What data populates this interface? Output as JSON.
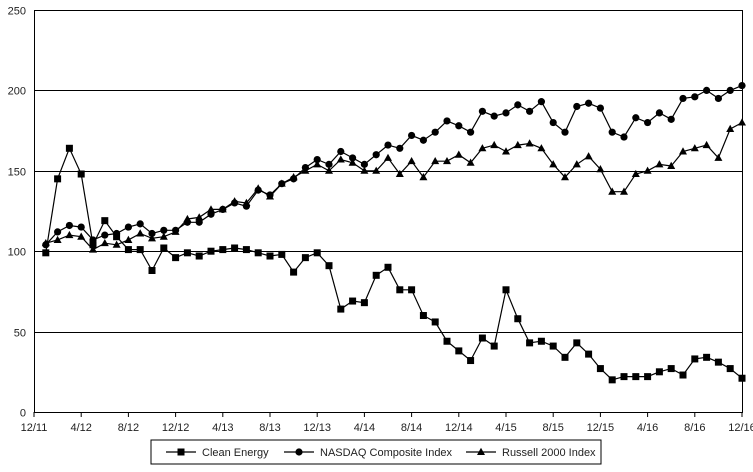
{
  "chart_data": {
    "type": "line",
    "title": "",
    "xlabel": "",
    "ylabel": "",
    "ylim": [
      0,
      250
    ],
    "yticks": [
      0,
      50,
      100,
      150,
      200,
      250
    ],
    "xlim": [
      0,
      60
    ],
    "xticks": [
      {
        "label": "12/11",
        "x": 0
      },
      {
        "label": "4/12",
        "x": 4
      },
      {
        "label": "8/12",
        "x": 8
      },
      {
        "label": "12/12",
        "x": 12
      },
      {
        "label": "4/13",
        "x": 16
      },
      {
        "label": "8/13",
        "x": 20
      },
      {
        "label": "12/13",
        "x": 24
      },
      {
        "label": "4/14",
        "x": 28
      },
      {
        "label": "8/14",
        "x": 32
      },
      {
        "label": "12/14",
        "x": 36
      },
      {
        "label": "4/15",
        "x": 40
      },
      {
        "label": "8/15",
        "x": 44
      },
      {
        "label": "12/15",
        "x": 48
      },
      {
        "label": "4/16",
        "x": 52
      },
      {
        "label": "8/16",
        "x": 56
      },
      {
        "label": "12/16",
        "x": 60
      }
    ],
    "grid": "horizontal",
    "legend": "bottom-center",
    "series": [
      {
        "name": "Clean Energy",
        "marker": "square",
        "values": [
          99,
          145,
          164,
          148,
          104,
          119,
          109,
          101,
          101,
          88,
          102,
          96,
          99,
          97,
          100,
          101,
          102,
          101,
          99,
          97,
          98,
          87,
          96,
          99,
          91,
          64,
          69,
          68,
          85,
          90,
          76,
          76,
          60,
          56,
          44,
          38,
          32,
          46,
          41,
          76,
          58,
          43,
          44,
          41,
          34,
          43,
          36,
          27,
          20,
          22,
          22,
          22,
          25,
          27,
          23,
          33,
          34,
          31,
          27,
          21
        ]
      },
      {
        "name": "NASDAQ Composite Index",
        "marker": "circle",
        "values": [
          104,
          112,
          116,
          115,
          107,
          110,
          111,
          115,
          117,
          111,
          113,
          113,
          118,
          118,
          123,
          126,
          130,
          128,
          138,
          135,
          142,
          145,
          152,
          157,
          154,
          162,
          158,
          154,
          160,
          166,
          164,
          172,
          169,
          174,
          181,
          178,
          174,
          187,
          184,
          186,
          191,
          187,
          193,
          180,
          174,
          190,
          192,
          189,
          174,
          171,
          183,
          180,
          186,
          182,
          195,
          196,
          200,
          195,
          200,
          203
        ]
      },
      {
        "name": "Russell 2000 Index",
        "marker": "triangle",
        "values": [
          105,
          107,
          110,
          109,
          101,
          105,
          104,
          107,
          111,
          108,
          109,
          112,
          120,
          121,
          126,
          126,
          131,
          130,
          139,
          134,
          142,
          146,
          150,
          154,
          150,
          157,
          155,
          150,
          150,
          158,
          148,
          156,
          146,
          156,
          156,
          160,
          155,
          164,
          166,
          162,
          166,
          167,
          164,
          154,
          146,
          154,
          159,
          151,
          137,
          137,
          148,
          150,
          154,
          153,
          162,
          164,
          166,
          158,
          176,
          180
        ]
      }
    ]
  }
}
